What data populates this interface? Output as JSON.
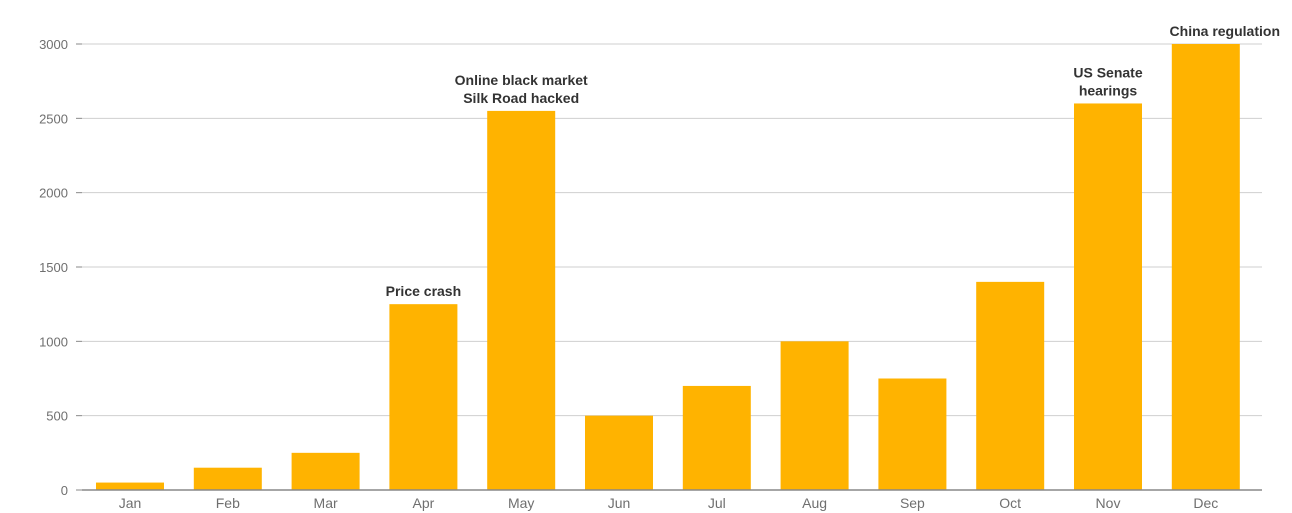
{
  "chart_data": {
    "type": "bar",
    "title": "",
    "xlabel": "",
    "ylabel": "",
    "categories": [
      "Jan",
      "Feb",
      "Mar",
      "Apr",
      "May",
      "Jun",
      "Jul",
      "Aug",
      "Sep",
      "Oct",
      "Nov",
      "Dec"
    ],
    "values": [
      50,
      150,
      250,
      1250,
      2550,
      500,
      700,
      1000,
      750,
      1400,
      2600,
      3000
    ],
    "ylim": [
      0,
      3000
    ],
    "yticks": [
      "0",
      "500",
      "1000",
      "1500",
      "2000",
      "2500",
      "3000"
    ],
    "grid": true,
    "legend": "none",
    "bar_color": "#FFB300",
    "annotations": [
      {
        "category": "Apr",
        "lines": [
          "Price crash"
        ]
      },
      {
        "category": "May",
        "lines": [
          "Online black market",
          "Silk Road hacked"
        ]
      },
      {
        "category": "Nov",
        "lines": [
          "US Senate",
          "hearings"
        ]
      },
      {
        "category": "Dec",
        "lines": [
          "China regulation"
        ]
      }
    ]
  }
}
